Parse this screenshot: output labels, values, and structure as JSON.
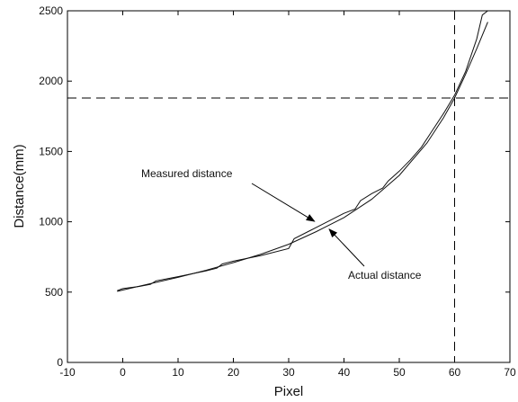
{
  "chart_data": {
    "type": "line",
    "title": "",
    "xlabel": "Pixel",
    "ylabel": "Distance(mm)",
    "xlim": [
      -10,
      70
    ],
    "ylim": [
      0,
      2500
    ],
    "xticks": [
      -10,
      0,
      10,
      20,
      30,
      40,
      50,
      60,
      70
    ],
    "yticks": [
      0,
      500,
      1000,
      1500,
      2000,
      2500
    ],
    "grid": false,
    "series": [
      {
        "name": "Measured distance",
        "x": [
          -1,
          0,
          3,
          5,
          6,
          10,
          15,
          17,
          18,
          20,
          25,
          30,
          31,
          34,
          37,
          40,
          42,
          43,
          45,
          47,
          48,
          50,
          52,
          54,
          56,
          58,
          60,
          62,
          64,
          65,
          66
        ],
        "y": [
          510,
          525,
          540,
          555,
          580,
          610,
          650,
          670,
          700,
          720,
          760,
          810,
          880,
          940,
          1000,
          1060,
          1090,
          1150,
          1200,
          1240,
          1290,
          1360,
          1440,
          1530,
          1650,
          1770,
          1900,
          2070,
          2300,
          2470,
          2500
        ]
      },
      {
        "name": "Actual distance",
        "x": [
          -1,
          0,
          5,
          10,
          15,
          20,
          25,
          30,
          35,
          40,
          45,
          50,
          55,
          58,
          60,
          62,
          64,
          66
        ],
        "y": [
          505,
          515,
          560,
          605,
          655,
          710,
          770,
          840,
          930,
          1030,
          1160,
          1330,
          1560,
          1740,
          1880,
          2050,
          2230,
          2420
        ]
      }
    ],
    "reference_lines": [
      {
        "orientation": "horizontal",
        "y": 1880,
        "style": "dashed"
      },
      {
        "orientation": "vertical",
        "x": 60,
        "style": "dashed"
      }
    ],
    "annotations": [
      {
        "text": "Measured distance",
        "points_to": [
          35,
          990
        ]
      },
      {
        "text": "Actual distance",
        "points_to": [
          37,
          960
        ]
      }
    ]
  }
}
